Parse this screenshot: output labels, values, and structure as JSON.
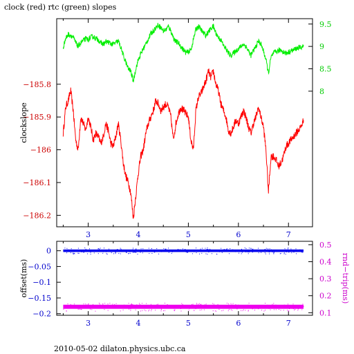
{
  "title": "clock (red) rtc (green) slopes",
  "footer": "2010-05-02  dilaton.physics.ubc.ca",
  "chart_data": [
    {
      "type": "line",
      "title": "clock (red) rtc (green) slopes",
      "xlabel": "",
      "ylabel": "clockslope",
      "y2label": "",
      "xlim": [
        2.37,
        7.48
      ],
      "ylim": [
        -186.235,
        -185.6
      ],
      "y2lim": [
        4.97,
        9.62
      ],
      "x_ticks": [
        3,
        4,
        5,
        6,
        7
      ],
      "y_ticks": [
        -185.8,
        -185.9,
        -186,
        -186.1,
        -186.2
      ],
      "y_tick_labels": [
        "−185.8",
        "−185.9",
        "−186",
        "−186.1",
        "−186.2"
      ],
      "y2_ticks": [
        9.5,
        9,
        8.5,
        8
      ],
      "colors": {
        "clock": "#ff0000",
        "rtc": "#00ee00",
        "left_axis": "#cc0000",
        "right_axis": "#00cc00"
      },
      "series": [
        {
          "name": "clock",
          "axis": "left",
          "x": [
            2.5,
            2.55,
            2.6,
            2.65,
            2.7,
            2.75,
            2.8,
            2.85,
            2.9,
            2.95,
            3.0,
            3.05,
            3.1,
            3.15,
            3.2,
            3.25,
            3.3,
            3.35,
            3.4,
            3.45,
            3.5,
            3.55,
            3.6,
            3.65,
            3.7,
            3.75,
            3.8,
            3.85,
            3.9,
            3.95,
            4.0,
            4.05,
            4.1,
            4.15,
            4.2,
            4.25,
            4.3,
            4.35,
            4.4,
            4.45,
            4.5,
            4.55,
            4.6,
            4.65,
            4.7,
            4.75,
            4.8,
            4.85,
            4.9,
            4.95,
            5.0,
            5.05,
            5.1,
            5.15,
            5.2,
            5.25,
            5.3,
            5.35,
            5.4,
            5.45,
            5.5,
            5.55,
            5.6,
            5.65,
            5.7,
            5.75,
            5.8,
            5.85,
            5.9,
            5.95,
            6.0,
            6.05,
            6.1,
            6.15,
            6.2,
            6.25,
            6.3,
            6.35,
            6.4,
            6.45,
            6.5,
            6.55,
            6.6,
            6.65,
            6.7,
            6.75,
            6.8,
            6.85,
            6.9,
            6.95,
            7.0,
            7.05,
            7.1,
            7.15,
            7.2,
            7.25,
            7.3
          ],
          "values": [
            -185.95,
            -185.87,
            -185.85,
            -185.82,
            -185.88,
            -185.97,
            -186.0,
            -185.9,
            -185.92,
            -185.94,
            -185.9,
            -185.93,
            -185.97,
            -185.95,
            -185.96,
            -185.98,
            -185.96,
            -185.92,
            -185.94,
            -185.98,
            -185.99,
            -185.96,
            -185.92,
            -185.97,
            -186.04,
            -186.08,
            -186.1,
            -186.13,
            -186.21,
            -186.14,
            -186.07,
            -186.02,
            -186.0,
            -185.95,
            -185.92,
            -185.9,
            -185.88,
            -185.85,
            -185.86,
            -185.88,
            -185.87,
            -185.86,
            -185.87,
            -185.9,
            -185.97,
            -185.92,
            -185.89,
            -185.87,
            -185.88,
            -185.89,
            -185.9,
            -185.97,
            -186.0,
            -185.88,
            -185.84,
            -185.83,
            -185.81,
            -185.79,
            -185.76,
            -185.78,
            -185.76,
            -185.8,
            -185.82,
            -185.86,
            -185.88,
            -185.9,
            -185.94,
            -185.95,
            -185.93,
            -185.91,
            -185.92,
            -185.9,
            -185.88,
            -185.9,
            -185.93,
            -185.95,
            -185.92,
            -185.9,
            -185.87,
            -185.9,
            -185.93,
            -186.0,
            -186.13,
            -186.02,
            -186.02,
            -186.03,
            -186.05,
            -186.04,
            -186.02,
            -185.99,
            -185.98,
            -185.97,
            -185.96,
            -185.95,
            -185.94,
            -185.93,
            -185.91
          ]
        },
        {
          "name": "rtc",
          "axis": "right",
          "x": [
            2.5,
            2.55,
            2.6,
            2.65,
            2.7,
            2.75,
            2.8,
            2.85,
            2.9,
            2.95,
            3.0,
            3.05,
            3.1,
            3.15,
            3.2,
            3.25,
            3.3,
            3.35,
            3.4,
            3.45,
            3.5,
            3.55,
            3.6,
            3.65,
            3.7,
            3.75,
            3.8,
            3.85,
            3.9,
            3.95,
            4.0,
            4.05,
            4.1,
            4.15,
            4.2,
            4.25,
            4.3,
            4.35,
            4.4,
            4.45,
            4.5,
            4.55,
            4.6,
            4.65,
            4.7,
            4.75,
            4.8,
            4.85,
            4.9,
            4.95,
            5.0,
            5.05,
            5.1,
            5.15,
            5.2,
            5.25,
            5.3,
            5.35,
            5.4,
            5.45,
            5.5,
            5.55,
            5.6,
            5.65,
            5.7,
            5.75,
            5.8,
            5.85,
            5.9,
            5.95,
            6.0,
            6.05,
            6.1,
            6.15,
            6.2,
            6.25,
            6.3,
            6.35,
            6.4,
            6.45,
            6.5,
            6.55,
            6.6,
            6.65,
            6.7,
            6.75,
            6.8,
            6.85,
            6.9,
            6.95,
            7.0,
            7.05,
            7.1,
            7.15,
            7.2,
            7.25,
            7.3
          ],
          "values": [
            8.98,
            9.18,
            9.27,
            9.25,
            9.2,
            9.08,
            9.0,
            9.08,
            9.13,
            9.17,
            9.15,
            9.2,
            9.22,
            9.18,
            9.15,
            9.08,
            9.05,
            9.1,
            9.1,
            9.06,
            9.05,
            9.08,
            9.12,
            8.98,
            8.8,
            8.65,
            8.5,
            8.45,
            8.22,
            8.5,
            8.7,
            8.83,
            8.95,
            9.05,
            9.17,
            9.28,
            9.35,
            9.42,
            9.48,
            9.42,
            9.35,
            9.37,
            9.45,
            9.35,
            9.2,
            9.1,
            9.08,
            9.0,
            8.93,
            8.86,
            8.88,
            8.92,
            9.15,
            9.38,
            9.45,
            9.38,
            9.3,
            9.25,
            9.32,
            9.4,
            9.45,
            9.3,
            9.2,
            9.15,
            9.02,
            8.95,
            8.85,
            8.8,
            8.85,
            8.9,
            8.95,
            9.0,
            9.05,
            9.0,
            8.9,
            8.8,
            8.9,
            9.0,
            9.12,
            9.05,
            8.9,
            8.7,
            8.4,
            8.75,
            8.85,
            8.88,
            8.9,
            8.92,
            8.88,
            8.85,
            8.87,
            8.9,
            8.92,
            8.95,
            8.97,
            8.98,
            9.0
          ]
        }
      ]
    },
    {
      "type": "scatter",
      "title": "",
      "xlabel": "",
      "ylabel": "offset(ms)",
      "y2label": "rnd−trip(ms)",
      "xlim": [
        2.37,
        7.48
      ],
      "ylim": [
        -0.205,
        0.03
      ],
      "y2lim": [
        0.085,
        0.52
      ],
      "x_ticks": [
        3,
        4,
        5,
        6,
        7
      ],
      "y_ticks": [
        0,
        -0.05,
        -0.1,
        -0.15,
        -0.2
      ],
      "y_tick_labels": [
        "0",
        "−0.05",
        "−0.1",
        "−0.15",
        "−0.2"
      ],
      "y2_ticks": [
        0.5,
        0.4,
        0.3,
        0.2,
        0.1
      ],
      "colors": {
        "offset": "#0000ee",
        "rnd_trip": "#ee00ee",
        "left_axis": "#0000cc",
        "right_axis": "#cc00cc"
      },
      "series": [
        {
          "name": "offset",
          "axis": "left",
          "x": [
            2.5,
            7.3
          ],
          "values": [
            0.0,
            0.0
          ]
        },
        {
          "name": "rnd-trip",
          "axis": "right",
          "x": [
            2.5,
            7.3
          ],
          "values": [
            0.135,
            0.135
          ]
        }
      ]
    }
  ]
}
